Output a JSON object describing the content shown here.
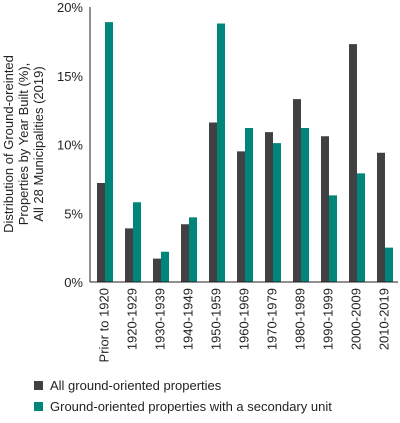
{
  "chart_data": {
    "type": "bar",
    "ylabel_lines": [
      "Distribution of Ground-oreinted",
      "Properties by Year Built (%),",
      "All 28 Municipalities (2019)"
    ],
    "categories": [
      "Prior to 1920",
      "1920-1929",
      "1930-1939",
      "1940-1949",
      "1950-1959",
      "1960-1969",
      "1970-1979",
      "1980-1989",
      "1990-1999",
      "2000-2009",
      "2010-2019"
    ],
    "series": [
      {
        "name": "All ground-oriented properties",
        "color": "#414042",
        "values": [
          7.2,
          3.9,
          1.7,
          4.2,
          11.6,
          9.5,
          10.9,
          13.3,
          10.6,
          17.3,
          9.4
        ]
      },
      {
        "name": "Ground-oriented properties with a secondary unit",
        "color": "#00857a",
        "values": [
          18.9,
          5.8,
          2.2,
          4.7,
          18.8,
          11.2,
          10.1,
          11.2,
          6.3,
          7.9,
          2.5
        ]
      }
    ],
    "yticks": [
      "0%",
      "5%",
      "10%",
      "15%",
      "20%"
    ],
    "ylim": [
      0,
      20
    ],
    "grid": false,
    "legend_position": "bottom-left"
  }
}
